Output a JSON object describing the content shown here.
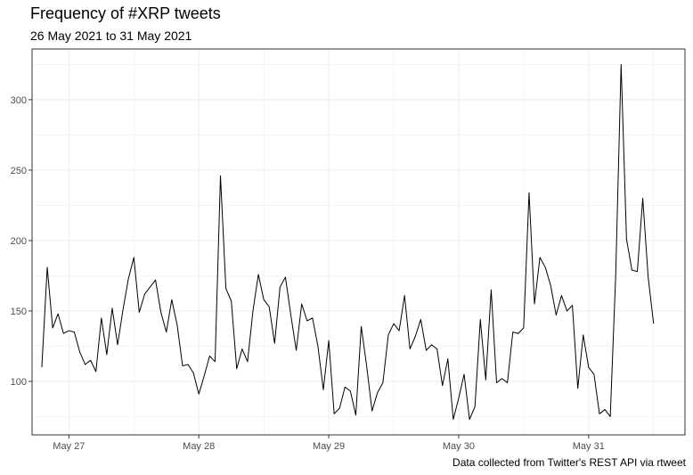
{
  "title": "Frequency of #XRP tweets",
  "subtitle": "26 May 2021 to 31 May 2021",
  "caption": "Data collected from Twitter's REST API via rtweet",
  "colors": {
    "line": "#000000",
    "grid": "#ebebeb",
    "panel_border": "#333333"
  },
  "chart_data": {
    "type": "line",
    "title": "Frequency of #XRP tweets",
    "subtitle": "26 May 2021 to 31 May 2021",
    "xlabel": "",
    "ylabel": "",
    "x_unit": "hourly",
    "x_start": "2021-05-26 19:00",
    "x_ticks": [
      {
        "label": "May 27",
        "value": 5
      },
      {
        "label": "May 28",
        "value": 29
      },
      {
        "label": "May 29",
        "value": 53
      },
      {
        "label": "May 30",
        "value": 77
      },
      {
        "label": "May 31",
        "value": 101
      }
    ],
    "y_ticks": [
      100,
      150,
      200,
      250,
      300
    ],
    "xlim": [
      -1.8,
      118.8
    ],
    "ylim": [
      62,
      336
    ],
    "grid": true,
    "series": [
      {
        "values": [
          110,
          181,
          138,
          148,
          134,
          136,
          135,
          121,
          112,
          115,
          107,
          145,
          119,
          152,
          126,
          151,
          173,
          188,
          149,
          162,
          167,
          172,
          149,
          135,
          158,
          140,
          111,
          112,
          106,
          91,
          104,
          118,
          114,
          246,
          166,
          157,
          109,
          123,
          114,
          150,
          176,
          158,
          153,
          127,
          167,
          174,
          147,
          122,
          155,
          143,
          145,
          125,
          94,
          129,
          77,
          81,
          96,
          93,
          76,
          139,
          111,
          79,
          92,
          99,
          133,
          141,
          136,
          161,
          123,
          132,
          144,
          122,
          126,
          123,
          97,
          116,
          73,
          88,
          105,
          73,
          82,
          144,
          101,
          165,
          99,
          102,
          99,
          135,
          134,
          138,
          234,
          155,
          188,
          181,
          168,
          147,
          161,
          150,
          154,
          95,
          133,
          110,
          105,
          77,
          80,
          75,
          175,
          325,
          201,
          179,
          178,
          230,
          174,
          141
        ]
      }
    ]
  }
}
